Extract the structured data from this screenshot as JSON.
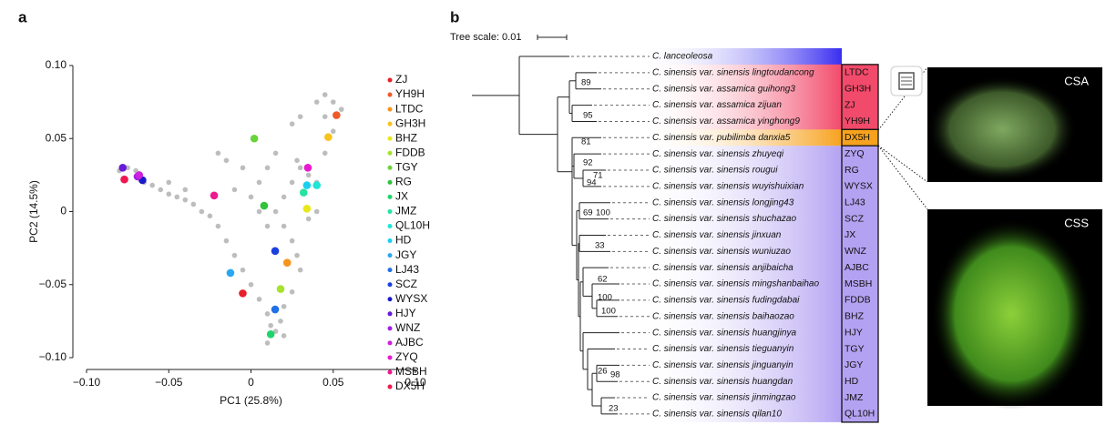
{
  "chart_data": [
    {
      "type": "scatter",
      "label": "a",
      "xlabel": "PC1 (25.8%)",
      "ylabel": "PC2 (14.5%)",
      "xlim": [
        -0.1,
        0.1
      ],
      "ylim": [
        -0.1,
        0.1
      ],
      "xticks": [
        {
          "value": -0.1,
          "label": "−0.10"
        },
        {
          "value": -0.05,
          "label": "−0.05"
        },
        0,
        0.05,
        {
          "value": 0.1,
          "label": "0.10"
        }
      ],
      "yticks": [
        {
          "value": -0.1,
          "label": "−0.10"
        },
        {
          "value": -0.05,
          "label": "−0.05"
        },
        0,
        0.05,
        {
          "value": 0.1,
          "label": "0.10"
        }
      ],
      "series": [
        {
          "color": "#bdbdbd",
          "x": [
            -0.08,
            -0.075,
            -0.07,
            -0.065,
            -0.06,
            -0.055,
            -0.05,
            -0.045,
            -0.04,
            -0.035,
            -0.03,
            -0.025,
            -0.02,
            -0.015,
            -0.01,
            -0.005,
            0,
            0.005,
            0.01,
            0.012,
            0.015,
            0.018,
            0.02,
            0.025,
            0.03,
            0.028,
            0.025,
            0.02,
            0.015,
            0.02,
            0.025,
            0.03,
            0.028,
            0.035,
            0.04,
            0.045,
            0.05,
            0.055,
            0.05,
            0.045,
            0.04,
            0.045,
            0,
            0.005,
            -0.005,
            -0.01,
            0.01,
            0.015,
            -0.015,
            -0.02,
            0.025,
            0.03,
            -0.05,
            -0.04,
            0.01,
            0.005,
            0.035,
            0.04,
            0.01,
            0.02
          ],
          "y": [
            0.028,
            0.03,
            0.028,
            0.02,
            0.018,
            0.015,
            0.012,
            0.01,
            0.008,
            0.005,
            0,
            -0.003,
            -0.01,
            -0.02,
            -0.03,
            -0.04,
            -0.05,
            -0.06,
            -0.07,
            -0.078,
            -0.082,
            -0.075,
            -0.065,
            -0.055,
            -0.04,
            -0.03,
            -0.02,
            -0.01,
            0,
            0.01,
            0.02,
            0.03,
            0.035,
            0.025,
            0.02,
            0.04,
            0.055,
            0.07,
            0.075,
            0.08,
            0.075,
            0.065,
            0.01,
            0.02,
            0.03,
            0.015,
            0.03,
            0.04,
            0.035,
            0.04,
            0.06,
            0.065,
            0.02,
            0.015,
            -0.01,
            0,
            -0.005,
            0,
            -0.09,
            -0.085
          ]
        },
        {
          "name": "ZJ",
          "color": "#e8202a",
          "x": [
            -0.005
          ],
          "y": [
            -0.056
          ]
        },
        {
          "name": "YH9H",
          "color": "#f05a28",
          "x": [
            0.052
          ],
          "y": [
            0.066
          ]
        },
        {
          "name": "LTDC",
          "color": "#f7941d",
          "x": [
            0.022
          ],
          "y": [
            -0.035
          ]
        },
        {
          "name": "GH3H",
          "color": "#f8c31a",
          "x": [
            0.047
          ],
          "y": [
            0.051
          ]
        },
        {
          "name": "BHZ",
          "color": "#e8e81a",
          "x": [
            0.034
          ],
          "y": [
            0.002
          ]
        },
        {
          "name": "FDDB",
          "color": "#a6e22e",
          "x": [
            0.018
          ],
          "y": [
            -0.053
          ]
        },
        {
          "name": "TGY",
          "color": "#6ad33a",
          "x": [
            0.002
          ],
          "y": [
            0.05
          ]
        },
        {
          "name": "RG",
          "color": "#2fc43b",
          "x": [
            0.008
          ],
          "y": [
            0.004
          ]
        },
        {
          "name": "JX",
          "color": "#1fd46a",
          "x": [
            0.012
          ],
          "y": [
            -0.084
          ]
        },
        {
          "name": "JMZ",
          "color": "#26e3a0",
          "x": [
            0.032
          ],
          "y": [
            0.013
          ]
        },
        {
          "name": "QL10H",
          "color": "#1ee6d6",
          "x": [
            0.04
          ],
          "y": [
            0.018
          ]
        },
        {
          "name": "HD",
          "color": "#1ad0f0",
          "x": [
            0.034
          ],
          "y": [
            0.018
          ]
        },
        {
          "name": "JGY",
          "color": "#28a8f0",
          "x": [
            -0.0125
          ],
          "y": [
            -0.042
          ]
        },
        {
          "name": "LJ43",
          "color": "#2070e8",
          "x": [
            0.0147
          ],
          "y": [
            -0.067
          ]
        },
        {
          "name": "SCZ",
          "color": "#1a40e0",
          "x": [
            0.0147
          ],
          "y": [
            -0.027
          ]
        },
        {
          "name": "WYSX",
          "color": "#1a1ac8",
          "x": [
            -0.066
          ],
          "y": [
            0.0215
          ]
        },
        {
          "name": "HJY",
          "color": "#6a1ad8",
          "x": [
            -0.078
          ],
          "y": [
            0.03
          ]
        },
        {
          "name": "WNZ",
          "color": "#a020e0",
          "x": [
            -0.069
          ],
          "y": [
            0.024
          ]
        },
        {
          "name": "AJBC",
          "color": "#d020e0",
          "x": [
            -0.068
          ],
          "y": [
            0.025
          ]
        },
        {
          "name": "ZYQ",
          "color": "#e81ad0",
          "x": [
            0.0346
          ],
          "y": [
            0.03
          ]
        },
        {
          "name": "MSBH",
          "color": "#f01890",
          "x": [
            -0.0224
          ],
          "y": [
            0.011
          ]
        },
        {
          "name": "DX5H",
          "color": "#f01850",
          "x": [
            -0.077
          ],
          "y": [
            0.022
          ]
        }
      ]
    },
    {
      "type": "tree",
      "label": "b",
      "scale_label": "Tree scale: 0.01",
      "leaves": [
        {
          "name": "C. lanceoleosa"
        },
        {
          "name": "C. sinensis var. sinensis lingtoudancong",
          "code": "LTDC"
        },
        {
          "name": "C. sinensis var. assamica guihong3",
          "code": "GH3H"
        },
        {
          "name": "C. sinensis var. assamica zijuan",
          "code": "ZJ"
        },
        {
          "name": "C. sinensis var. assamica yinghong9",
          "code": "YH9H"
        },
        {
          "name": "C. sinensis var. pubilimba danxia5",
          "code": "DX5H"
        },
        {
          "name": "C. sinensis var. sinensis zhuyeqi",
          "code": "ZYQ"
        },
        {
          "name": "C. sinensis var. sinensis rougui",
          "code": "RG"
        },
        {
          "name": "C. sinensis var. sinensis wuyishuixian",
          "code": "WYSX"
        },
        {
          "name": "C. sinensis var. sinensis longjing43",
          "code": "LJ43"
        },
        {
          "name": "C. sinensis var. sinensis shuchazao",
          "code": "SCZ"
        },
        {
          "name": "C. sinensis var. sinensis jinxuan",
          "code": "JX"
        },
        {
          "name": "C. sinensis var. sinensis wuniuzao",
          "code": "WNZ"
        },
        {
          "name": "C. sinensis var. sinensis anjibaicha",
          "code": "AJBC"
        },
        {
          "name": "C. sinensis var. sinensis mingshanbaihao",
          "code": "MSBH"
        },
        {
          "name": "C. sinensis var. sinensis fudingdabai",
          "code": "FDDB"
        },
        {
          "name": "C. sinensis var. sinensis baihaozao",
          "code": "BHZ"
        },
        {
          "name": "C. sinensis var. sinensis huangjinya",
          "code": "HJY"
        },
        {
          "name": "C. sinensis var. sinensis tieguanyin",
          "code": "TGY"
        },
        {
          "name": "C. sinensis var. sinensis jinguanyin",
          "code": "JGY"
        },
        {
          "name": "C. sinensis var. sinensis huangdan",
          "code": "HD"
        },
        {
          "name": "C. sinensis var. sinensis jinmingzao",
          "code": "JMZ"
        },
        {
          "name": "C. sinensis var. sinensis qilan10",
          "code": "QL10H"
        }
      ],
      "bootstrap": [
        89,
        95,
        81,
        92,
        71,
        94,
        69,
        100,
        33,
        62,
        100,
        100,
        26,
        98,
        23
      ],
      "images": [
        "CSA",
        "CSS"
      ]
    }
  ]
}
